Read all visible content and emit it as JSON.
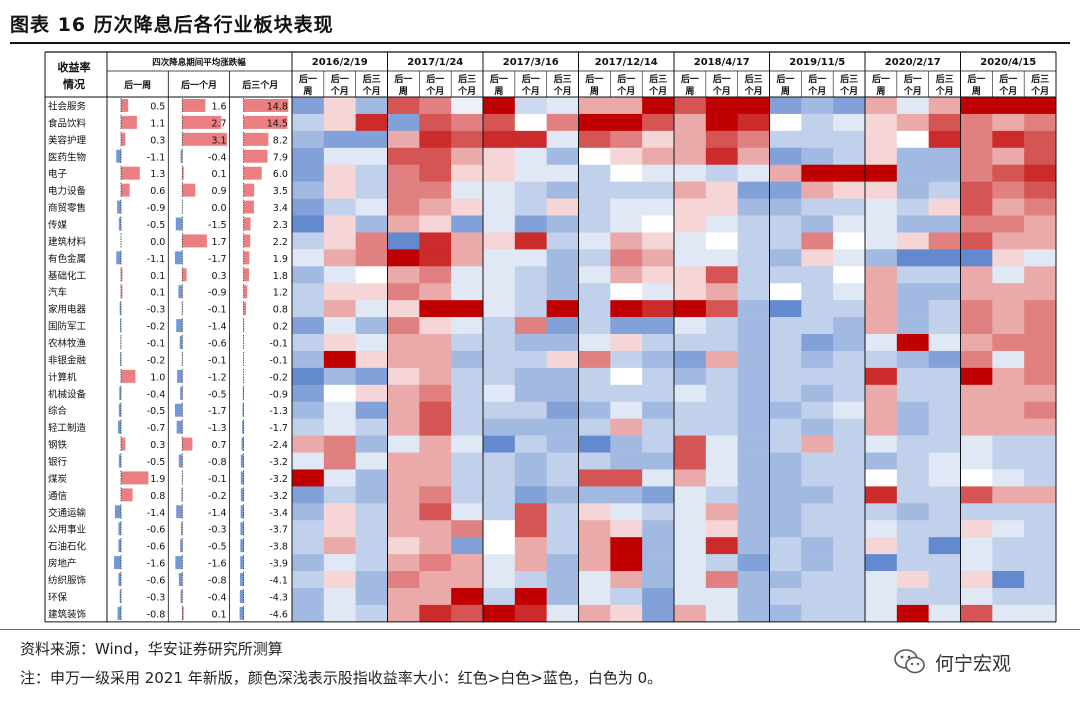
{
  "header": {
    "title": "图表 16  历次降息后各行业板块表现"
  },
  "table": {
    "corner": "收益率\n情况",
    "avg_header": "四次降息期间平均涨跌幅",
    "avg_cols": [
      "后一周",
      "后一个月",
      "后三个月"
    ],
    "sub_cols": [
      "后一\n周",
      "后一\n个月",
      "后三\n个月"
    ],
    "events": [
      "2016/2/19",
      "2017/1/24",
      "2017/3/16",
      "2017/12/14",
      "2018/4/17",
      "2019/11/5",
      "2020/2/17",
      "2020/4/15"
    ],
    "colors": {
      "red": "#c00000",
      "blue": "#4472c4",
      "white": "#ffffff"
    }
  },
  "chart_data": {
    "type": "heatmap",
    "title": "历次降息后各行业板块表现",
    "industries": [
      "社会服务",
      "食品饮料",
      "美容护理",
      "医药生物",
      "电子",
      "电力设备",
      "商贸零售",
      "传媒",
      "建筑材料",
      "有色金属",
      "基础化工",
      "汽车",
      "家用电器",
      "国防军工",
      "农林牧渔",
      "非银金融",
      "计算机",
      "机械设备",
      "综合",
      "轻工制造",
      "钢铁",
      "银行",
      "煤炭",
      "通信",
      "交通运输",
      "公用事业",
      "石油石化",
      "房地产",
      "纺织服饰",
      "环保",
      "建筑装饰"
    ],
    "avg_week": [
      0.5,
      1.1,
      0.3,
      -1.1,
      1.3,
      0.6,
      -0.9,
      -0.5,
      0.0,
      -1.1,
      0.1,
      0.1,
      -0.3,
      -0.2,
      -0.1,
      -0.2,
      1.0,
      -0.4,
      -0.5,
      -0.7,
      0.3,
      -0.5,
      1.9,
      0.8,
      -1.4,
      -0.6,
      -0.6,
      -1.6,
      -0.6,
      -0.3,
      -0.8
    ],
    "avg_month": [
      1.6,
      2.7,
      3.1,
      -0.4,
      0.1,
      0.9,
      0.0,
      -1.5,
      1.7,
      -1.7,
      0.3,
      -0.9,
      -0.1,
      -1.4,
      -0.6,
      -0.1,
      -1.2,
      -0.5,
      -1.7,
      -1.3,
      0.7,
      -0.8,
      -0.1,
      -0.2,
      -1.4,
      -0.3,
      -0.5,
      -1.6,
      -0.8,
      -0.4,
      0.1
    ],
    "avg_quarter": [
      14.8,
      14.5,
      8.2,
      7.9,
      6.0,
      3.5,
      3.4,
      2.3,
      2.2,
      1.9,
      1.8,
      1.2,
      0.8,
      0.2,
      -0.1,
      -0.1,
      -0.2,
      -0.9,
      -1.3,
      -1.7,
      -2.4,
      -3.2,
      -3.2,
      -3.2,
      -3.4,
      -3.7,
      -3.8,
      -3.9,
      -4.1,
      -4.3,
      -4.6
    ],
    "heat": [
      [
        -2,
        0.5,
        -1.5,
        2,
        1.5,
        -0.3,
        5,
        -0.8,
        -0.5,
        1,
        1,
        3,
        2,
        3,
        3,
        -2,
        -1.5,
        -2,
        1,
        -0.5,
        1,
        3,
        3,
        3
      ],
      [
        -1,
        0.5,
        2.5,
        -2,
        2,
        1.5,
        2,
        0,
        1.5,
        3,
        3,
        2,
        1,
        3,
        2.5,
        0,
        -1,
        -0.5,
        0.5,
        1,
        2,
        1.5,
        1,
        1.5
      ],
      [
        -1.5,
        -2,
        -2,
        1,
        2.5,
        2,
        2.5,
        2.5,
        -0.5,
        2,
        1.5,
        0.5,
        1,
        2,
        1.5,
        -1,
        -1,
        -1,
        0.5,
        0,
        2.5,
        1.5,
        2.5,
        2
      ],
      [
        -2,
        -0.5,
        -0.5,
        2,
        2,
        1,
        0.5,
        -0.5,
        -1.5,
        0,
        0.5,
        1,
        1,
        2.5,
        1,
        -2,
        -1.5,
        -1,
        0.5,
        -1.5,
        -1.5,
        1.5,
        1,
        2
      ],
      [
        -2,
        0.5,
        -1,
        1.5,
        2,
        0.5,
        0.5,
        -0.5,
        -0.5,
        -1,
        0,
        -0.5,
        -0.5,
        -1,
        -0.5,
        1,
        3,
        3,
        3,
        -1.5,
        -1.5,
        1.5,
        2,
        2.5
      ],
      [
        -1.5,
        0.5,
        -1,
        1.5,
        1.5,
        -0.5,
        -0.5,
        -1,
        -1.5,
        -1,
        -1,
        -1,
        1,
        0.5,
        -2,
        -2,
        1,
        0.5,
        0.5,
        -1.5,
        -1,
        2,
        1.5,
        2
      ],
      [
        -2,
        -1,
        -0.5,
        1.5,
        1,
        0.5,
        -0.5,
        -1,
        0.5,
        -1,
        -0.5,
        -0.5,
        0.5,
        0.5,
        -1.5,
        -1.5,
        -1,
        -1,
        -0.5,
        -1,
        0.5,
        2,
        1,
        1.5
      ],
      [
        -2.5,
        0.5,
        -1.5,
        1,
        0.5,
        -2,
        -0.5,
        -2,
        -1.5,
        -1,
        -0.5,
        0,
        0.5,
        -0.5,
        -1,
        -1,
        -1.5,
        -0.5,
        -0.5,
        -1.5,
        -1.5,
        1.5,
        1.5,
        1
      ],
      [
        -1,
        0.5,
        1.5,
        -2.5,
        2.5,
        1,
        0.5,
        2.5,
        -1,
        -0.5,
        1,
        0.5,
        -0.5,
        0,
        -1,
        -1,
        1.5,
        0,
        -0.5,
        0.5,
        1.5,
        2,
        1,
        1
      ],
      [
        -0.5,
        1,
        1.5,
        3,
        2.5,
        1,
        -0.5,
        -0.5,
        -1.5,
        -1,
        1.5,
        1,
        -0.5,
        -0.5,
        -1,
        -1.5,
        0.5,
        -0.5,
        -1.5,
        -2.5,
        -2.5,
        -2.5,
        0.5,
        -0.5
      ],
      [
        -1.5,
        -0.5,
        0,
        1,
        1.5,
        -0.5,
        -0.5,
        -1,
        -1.5,
        -0.5,
        1,
        0.5,
        0.5,
        2,
        -1,
        -1,
        -1,
        0,
        1,
        -1,
        -1,
        1,
        -0.5,
        1
      ],
      [
        -1,
        0.5,
        0.5,
        1.5,
        1,
        -0.5,
        -0.5,
        -1,
        -1.5,
        -1,
        0,
        -0.5,
        0.5,
        1,
        -1,
        0,
        -1,
        -0.5,
        1,
        -1.5,
        -1.5,
        1,
        1,
        1
      ],
      [
        -1,
        1,
        -0.5,
        0.5,
        3,
        3,
        -0.5,
        -1,
        3,
        -1,
        3,
        2.5,
        3,
        2,
        -1.5,
        -2.5,
        -1,
        -1,
        1,
        -1.5,
        -1,
        1.5,
        1,
        1.5
      ],
      [
        -2,
        -0.5,
        -1.5,
        1.5,
        0.5,
        -0.5,
        -1,
        1.5,
        -2,
        -1,
        -2,
        -2,
        -0.5,
        -1,
        -1.5,
        -1,
        -1,
        -1.5,
        1,
        -1.5,
        -1,
        1.5,
        1,
        1.5
      ],
      [
        -1,
        0.5,
        -0.5,
        1,
        1,
        -1,
        -1,
        -1.5,
        -1.5,
        -0.5,
        0.5,
        -1,
        -1,
        -1,
        -1.5,
        -1,
        -2,
        -1.5,
        -0.5,
        3,
        -0.5,
        1,
        1.5,
        1.5
      ],
      [
        -1.5,
        3,
        0.5,
        1,
        1,
        -1.5,
        -1,
        -1,
        0.5,
        1.5,
        -1,
        -1.5,
        -2,
        1,
        -1.5,
        -1,
        -1.5,
        -1,
        -1,
        -1.5,
        -2,
        1.5,
        -0.5,
        1.5
      ],
      [
        -2.5,
        -1.5,
        -2,
        0.5,
        1,
        -1,
        -1,
        -1.5,
        -1.5,
        -1,
        0,
        -1,
        -1.5,
        -1,
        -1.5,
        -1,
        -1,
        -1,
        2.5,
        -1,
        -1,
        3,
        1,
        1.5
      ],
      [
        -2,
        0,
        0.5,
        1,
        1.5,
        -1,
        -0.5,
        -1.5,
        -1.5,
        -1,
        -1,
        -1,
        -0.5,
        -1,
        -1.5,
        -1,
        -1.5,
        -1,
        1,
        -1,
        -1,
        1,
        1,
        1
      ],
      [
        -1.5,
        -0.5,
        -2,
        1,
        2,
        -1,
        -1,
        -1,
        -2,
        -1.5,
        -0.5,
        -1.5,
        -1,
        -1,
        -1.5,
        -1.5,
        -1,
        -0.5,
        1,
        -1.5,
        -1,
        1,
        1,
        1.5
      ],
      [
        -1,
        -0.5,
        -1,
        1,
        2,
        -1,
        -1.5,
        -1.5,
        -1.5,
        -1,
        1,
        -1,
        -1,
        -1,
        -1.5,
        -1,
        -1.5,
        -1,
        1,
        -1.5,
        -1,
        1,
        1,
        1
      ],
      [
        1,
        1.5,
        -1.5,
        -0.5,
        1,
        -0.5,
        -2.5,
        -1,
        -1.5,
        -2.5,
        -1.5,
        -1,
        2,
        -0.5,
        -1.5,
        -1,
        1,
        -1,
        -0.5,
        -1,
        -1,
        -0.5,
        -1,
        -1
      ],
      [
        -0.5,
        1.5,
        -0.5,
        1,
        1,
        -1,
        -1,
        -1.5,
        -1,
        -1,
        -1.5,
        -1.5,
        2,
        -0.5,
        -1.5,
        -1.5,
        -1,
        -1,
        -1.5,
        -1,
        -0.5,
        -0.5,
        -1,
        -1
      ],
      [
        3,
        -0.5,
        -1.5,
        1,
        1,
        -1,
        -1,
        -1.5,
        -1,
        2,
        2,
        -0.5,
        1,
        -0.5,
        -1.5,
        -1.5,
        -1,
        -1,
        0,
        -1,
        -0.5,
        0,
        -0.5,
        -1
      ],
      [
        -2,
        -1,
        -1.5,
        1,
        1.5,
        -1,
        -1,
        -2,
        -1.5,
        -1.5,
        -1.5,
        -2,
        -0.5,
        -1,
        -1.5,
        -1.5,
        -1.5,
        -1,
        2.5,
        -1,
        -1,
        2,
        1,
        1
      ],
      [
        -1.5,
        0.5,
        -1,
        1,
        2,
        -0.5,
        -1,
        2,
        -1,
        0.5,
        -0.5,
        -1,
        -0.5,
        1,
        -1.5,
        -1.5,
        -1,
        -1,
        -1,
        -1.5,
        -1,
        -1,
        -1,
        -1
      ],
      [
        -1,
        0.5,
        -1,
        1,
        1,
        1.5,
        0,
        2,
        -1,
        1,
        0.5,
        -1.5,
        -0.5,
        0.5,
        -1.5,
        -1.5,
        -1,
        -1,
        -0.5,
        -1,
        -1,
        0.5,
        -0.5,
        -1
      ],
      [
        -1,
        1,
        -1,
        0.5,
        1,
        -2,
        0,
        1,
        -1,
        1,
        3,
        -1.5,
        -0.5,
        2.5,
        -1.5,
        -1,
        -1.5,
        -1,
        0.5,
        -1,
        -2.5,
        -0.5,
        -1,
        -1
      ],
      [
        -1.5,
        -0.5,
        -1,
        1,
        1.5,
        1,
        -0.5,
        1,
        -1.5,
        1,
        3,
        -1.5,
        -0.5,
        -1,
        -2,
        -1,
        -1.5,
        -1,
        -2.5,
        -1,
        -1,
        -0.5,
        -1,
        -1
      ],
      [
        -1,
        0.5,
        -1.5,
        1.5,
        1,
        1,
        -0.5,
        -1,
        -1.5,
        -0.5,
        1,
        -1.5,
        -0.5,
        1.5,
        -1.5,
        -1.5,
        -1,
        -1,
        -0.5,
        0.5,
        -1,
        0.5,
        -2.5,
        -1
      ],
      [
        -1.5,
        -0.5,
        -1.5,
        1,
        1,
        3,
        -1,
        3,
        -1.5,
        -0.5,
        -1,
        -2,
        -0.5,
        -0.5,
        -1.5,
        -1,
        -1,
        -1,
        -0.5,
        -1,
        -1,
        -0.5,
        -1,
        -1
      ],
      [
        -1.5,
        -0.5,
        -1,
        1,
        2.5,
        2,
        3,
        2.5,
        -0.5,
        1,
        0.5,
        -2,
        1,
        -0.5,
        -1.5,
        -1.5,
        -1,
        -1,
        -0.5,
        3,
        -0.5,
        2,
        -0.5,
        -0.5
      ]
    ]
  },
  "footer": {
    "source": "资料来源：Wind，华安证券研究所测算",
    "note": "注：申万一级采用 2021 年新版，颜色深浅表示股指收益率大小：红色>白色>蓝色，白色为 0。",
    "watermark": "何宁宏观"
  }
}
